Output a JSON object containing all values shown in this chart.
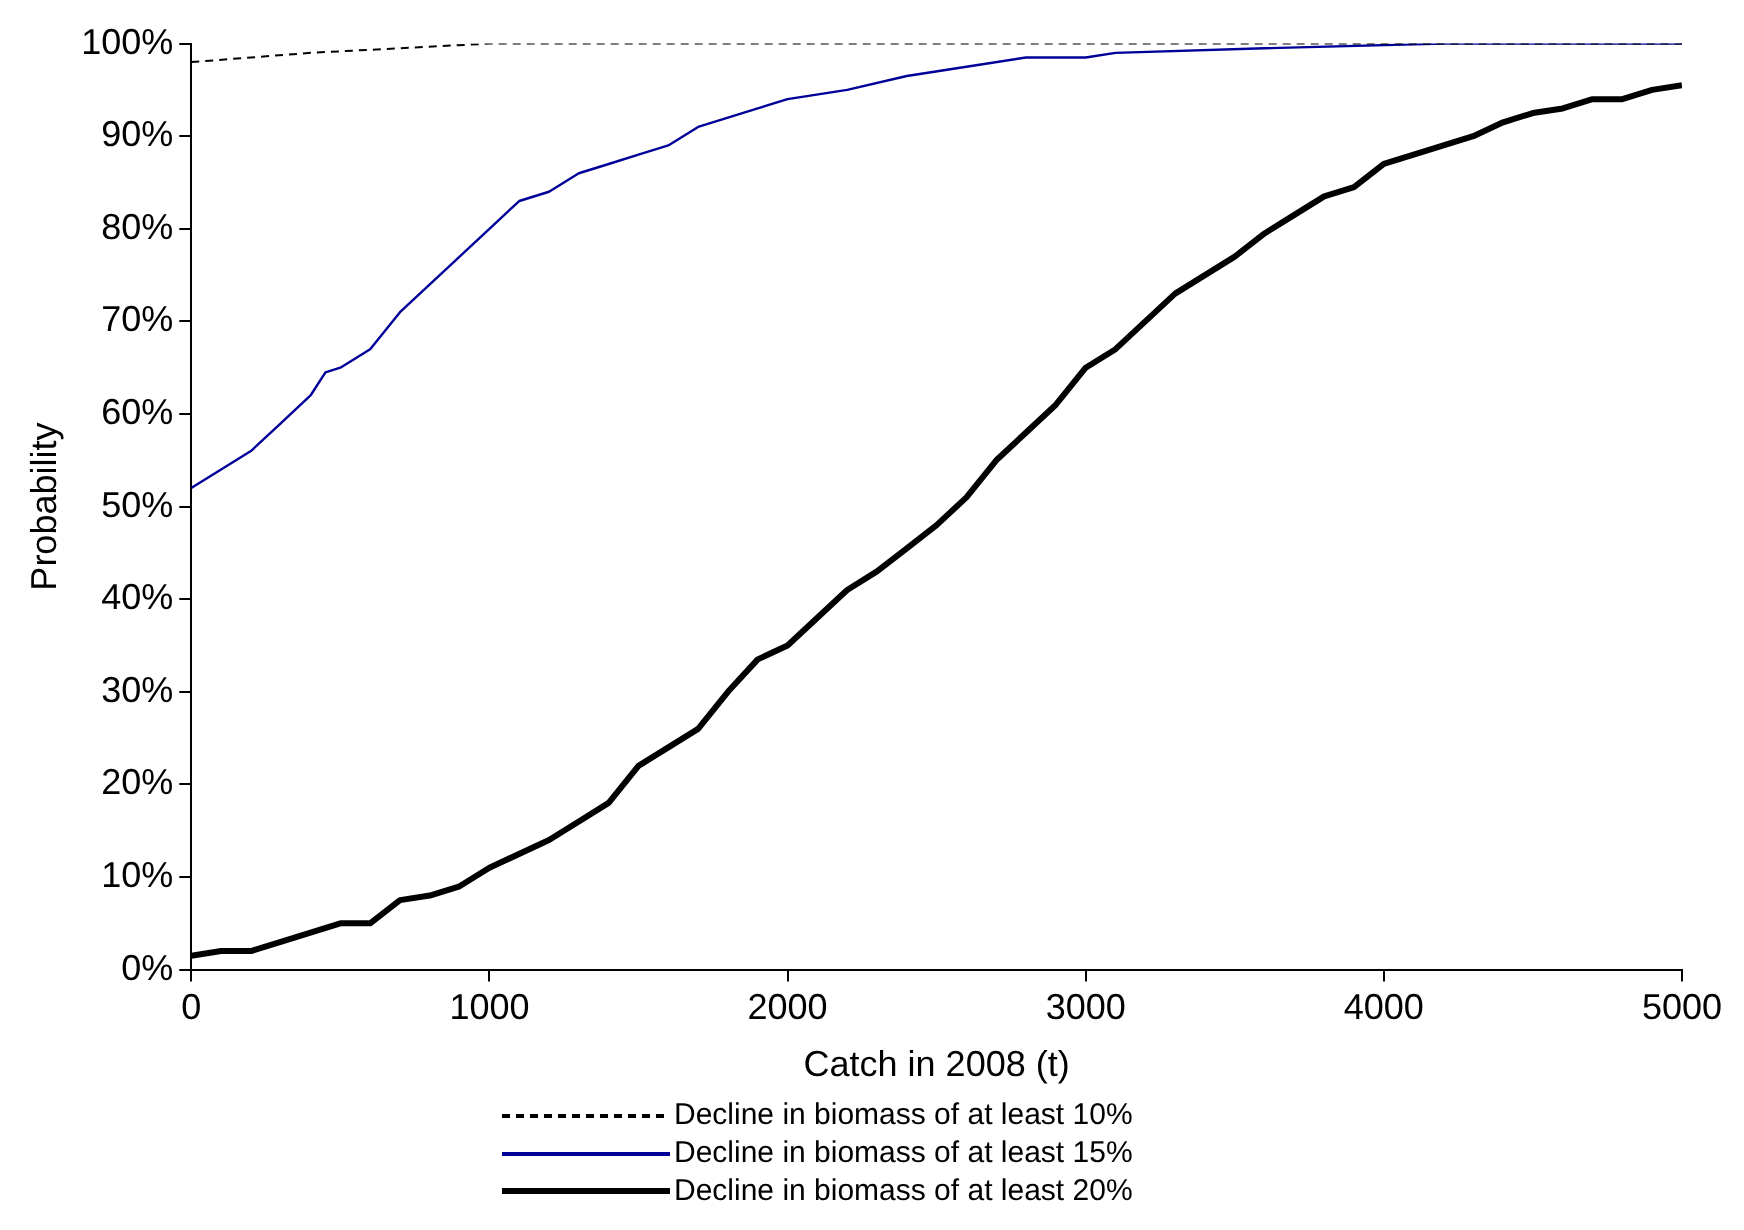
{
  "chart_data": {
    "type": "line",
    "xlabel": "Catch in 2008 (t)",
    "ylabel": "Probability",
    "xlim": [
      0,
      5000
    ],
    "xticks": [
      0,
      1000,
      2000,
      3000,
      4000,
      5000
    ],
    "ylim": [
      0,
      100
    ],
    "yticks": [
      {
        "value": 0,
        "label": "0%"
      },
      {
        "value": 10,
        "label": "10%"
      },
      {
        "value": 20,
        "label": "20%"
      },
      {
        "value": 30,
        "label": "30%"
      },
      {
        "value": 40,
        "label": "40%"
      },
      {
        "value": 50,
        "label": "50%"
      },
      {
        "value": 60,
        "label": "60%"
      },
      {
        "value": 70,
        "label": "70%"
      },
      {
        "value": 80,
        "label": "80%"
      },
      {
        "value": 90,
        "label": "90%"
      },
      {
        "value": 100,
        "label": "100%"
      }
    ],
    "grid": false,
    "legend": "bottom",
    "marker": "none",
    "series": [
      {
        "name": "Decline in biomass of at least 10%",
        "color": "#000000",
        "line_style": "dashed",
        "x": [
          0,
          200,
          400,
          1000,
          5000
        ],
        "values": [
          98,
          98.5,
          99,
          100,
          100
        ]
      },
      {
        "name": "Decline in biomass of at least 15%",
        "color": "#000099",
        "line_style": "solid",
        "x": [
          0,
          100,
          200,
          300,
          400,
          450,
          500,
          600,
          700,
          800,
          900,
          1000,
          1100,
          1200,
          1300,
          1400,
          1500,
          1600,
          1700,
          1800,
          1900,
          2000,
          2200,
          2400,
          2600,
          2800,
          3000,
          3100,
          3600,
          4200,
          5000
        ],
        "values": [
          52,
          54,
          56,
          59,
          62,
          64.5,
          65,
          67,
          71,
          74,
          77,
          80,
          83,
          84,
          86,
          87,
          88,
          89,
          91,
          92,
          93,
          94,
          95,
          96.5,
          97.5,
          98.5,
          98.5,
          99,
          99.5,
          100,
          100
        ]
      },
      {
        "name": "Decline in biomass of at least 20%",
        "color": "#000000",
        "line_style": "solid",
        "x": [
          0,
          100,
          200,
          300,
          500,
          600,
          700,
          800,
          900,
          1000,
          1200,
          1300,
          1400,
          1500,
          1600,
          1700,
          1800,
          1900,
          2000,
          2100,
          2200,
          2300,
          2400,
          2500,
          2600,
          2700,
          2800,
          2900,
          3000,
          3100,
          3200,
          3300,
          3400,
          3500,
          3600,
          3700,
          3800,
          3900,
          4000,
          4100,
          4200,
          4300,
          4400,
          4500,
          4600,
          4700,
          4800,
          4900,
          5000
        ],
        "values": [
          1.5,
          2,
          2,
          3,
          5,
          5,
          7.5,
          8,
          9,
          11,
          14,
          16,
          18,
          22,
          24,
          26,
          30,
          33.5,
          35,
          38,
          41,
          43,
          45.5,
          48,
          51,
          55,
          58,
          61,
          65,
          67,
          70,
          73,
          75,
          77,
          79.5,
          81.5,
          83.5,
          84.5,
          87,
          88,
          89,
          90,
          91.5,
          92.5,
          93,
          94,
          94,
          95,
          95.5
        ]
      }
    ]
  }
}
